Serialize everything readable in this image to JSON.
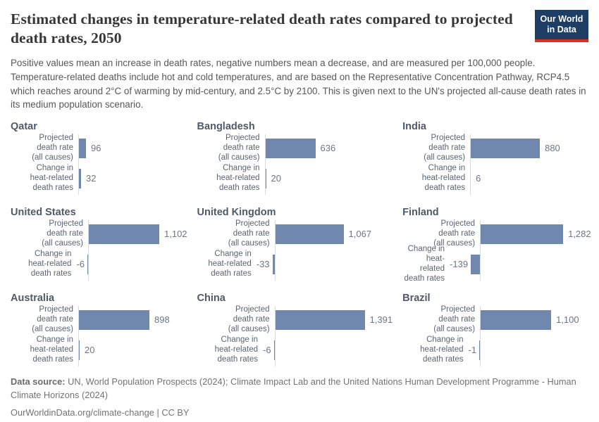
{
  "header": {
    "title": "Estimated changes in temperature-related death rates compared to projected death rates, 2050",
    "subtitle": "Positive values mean an increase in death rates, negative numbers mean a decrease, and are measured per 100,000 people. Temperature-related deaths include hot and cold temperatures, and are based on the Representative Concentration Pathway, RCP4.5 which reaches around 2°C of warming by mid-century, and 2.5°C by 2100. This is given next to the UN's projected all-cause death rates in its medium population scenario.",
    "logo_text": "Our World\nin Data"
  },
  "colors": {
    "bar": "#7088ae",
    "axis": "#d7dade",
    "logo_bg": "#1d3d63",
    "logo_stripe": "#d93025"
  },
  "chart_data": {
    "type": "bar",
    "orientation": "horizontal",
    "title": "Estimated changes in temperature-related death rates compared to projected death rates, 2050",
    "unit": "per 100,000 people",
    "categories": [
      "Projected death rate (all causes)",
      "Change in heat-related death rates"
    ],
    "category_label_lines": [
      "Projected\ndeath rate\n(all causes)",
      "Change in\nheat-related\ndeath rates"
    ],
    "layout": "3x3 small multiples, value labels at bar ends, no x-axis ticks",
    "panels": [
      {
        "country": "Qatar",
        "rows": [
          {
            "category": "Projected death rate (all causes)",
            "value": 96,
            "display": "96"
          },
          {
            "category": "Change in heat-related death rates",
            "value": 32,
            "display": "32"
          }
        ]
      },
      {
        "country": "Bangladesh",
        "rows": [
          {
            "category": "Projected death rate (all causes)",
            "value": 636,
            "display": "636"
          },
          {
            "category": "Change in heat-related death rates",
            "value": 20,
            "display": "20"
          }
        ]
      },
      {
        "country": "India",
        "rows": [
          {
            "category": "Projected death rate (all causes)",
            "value": 880,
            "display": "880"
          },
          {
            "category": "Change in heat-related death rates",
            "value": 6,
            "display": "6"
          }
        ]
      },
      {
        "country": "United States",
        "rows": [
          {
            "category": "Projected death rate (all causes)",
            "value": 1102,
            "display": "1,102"
          },
          {
            "category": "Change in heat-related death rates",
            "value": -6,
            "display": "-6"
          }
        ]
      },
      {
        "country": "United Kingdom",
        "rows": [
          {
            "category": "Projected death rate (all causes)",
            "value": 1067,
            "display": "1,067"
          },
          {
            "category": "Change in heat-related death rates",
            "value": -33,
            "display": "-33"
          }
        ]
      },
      {
        "country": "Finland",
        "rows": [
          {
            "category": "Projected death rate (all causes)",
            "value": 1282,
            "display": "1,282"
          },
          {
            "category": "Change in heat-related death rates",
            "value": -139,
            "display": "-139"
          }
        ]
      },
      {
        "country": "Australia",
        "rows": [
          {
            "category": "Projected death rate (all causes)",
            "value": 898,
            "display": "898"
          },
          {
            "category": "Change in heat-related death rates",
            "value": 20,
            "display": "20"
          }
        ]
      },
      {
        "country": "China",
        "rows": [
          {
            "category": "Projected death rate (all causes)",
            "value": 1391,
            "display": "1,391"
          },
          {
            "category": "Change in heat-related death rates",
            "value": -6,
            "display": "-6"
          }
        ]
      },
      {
        "country": "Brazil",
        "rows": [
          {
            "category": "Projected death rate (all causes)",
            "value": 1100,
            "display": "1,100"
          },
          {
            "category": "Change in heat-related death rates",
            "value": -1,
            "display": "-1"
          }
        ]
      }
    ]
  },
  "footer": {
    "source_label": "Data source:",
    "source_text": " UN, World Population Prospects (2024); Climate Impact Lab and the United Nations Human Development Programme - Human Climate Horizons (2024)",
    "url_line": "OurWorldinData.org/climate-change | CC BY"
  }
}
